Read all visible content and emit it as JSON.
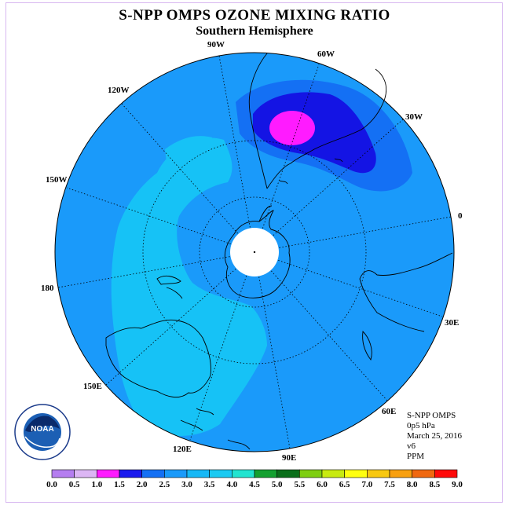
{
  "title": "S-NPP OMPS OZONE MIXING RATIO",
  "subtitle": "Southern Hemisphere",
  "longitude_labels": [
    "90W",
    "60W",
    "30W",
    "0",
    "30E",
    "60E",
    "90E",
    "120E",
    "150E",
    "180",
    "150W",
    "120W"
  ],
  "info": {
    "instrument": "S-NPP OMPS",
    "level": "0p5 hPa",
    "date": "March 25, 2016",
    "version": "v6",
    "units": "PPM"
  },
  "logo_text": "NOAA",
  "colorbar": {
    "ticks": [
      "0.0",
      "0.5",
      "1.0",
      "1.5",
      "2.0",
      "2.5",
      "3.0",
      "3.5",
      "4.0",
      "4.5",
      "5.0",
      "5.5",
      "6.0",
      "6.5",
      "7.0",
      "7.5",
      "8.0",
      "8.5",
      "9.0"
    ],
    "colors": [
      "#b57ef0",
      "#dcb6f4",
      "#ff1bff",
      "#1a1aee",
      "#1470f4",
      "#1a9afa",
      "#16b8f6",
      "#1acaf2",
      "#22e4d0",
      "#14a030",
      "#0a6e1a",
      "#7ece10",
      "#c8ea10",
      "#ffff10",
      "#f8c810",
      "#f8a010",
      "#f06810",
      "#ff0a0a",
      "#8c4a2e"
    ]
  },
  "map_colors": {
    "background": "#1a9afa",
    "light_region": "#16c2f6",
    "medium_region": "#1470f4",
    "dark_region": "#1414e4",
    "peak_region": "#ff1bff",
    "polar_cap": "#ffffff"
  }
}
